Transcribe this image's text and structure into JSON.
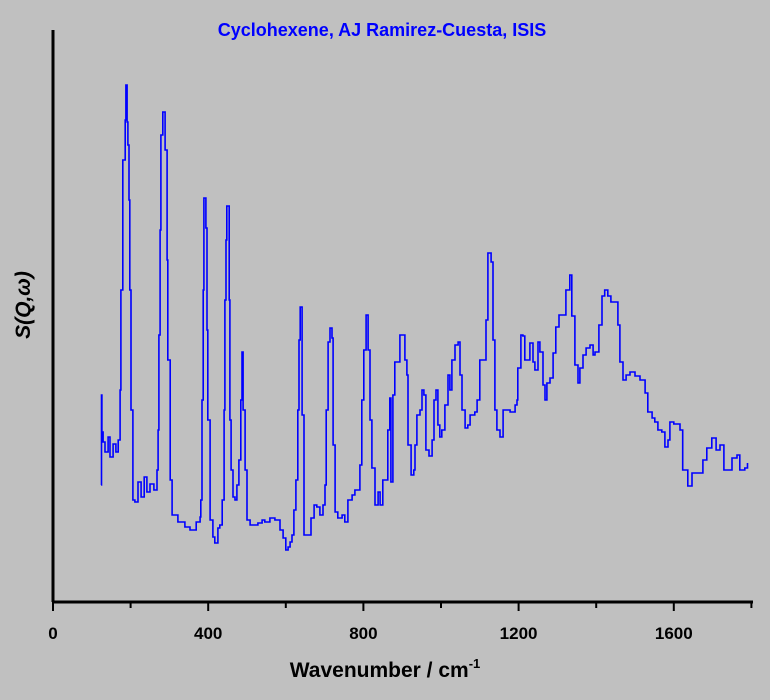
{
  "chart_data": {
    "type": "line",
    "title": "Cyclohexene, AJ Ramirez-Cuesta, ISIS",
    "xlabel": "Wavenumber / cm",
    "xlabel_superscript": "-1",
    "ylabel_prefix": "S(Q,",
    "ylabel_omega": "ω",
    "ylabel_suffix": ")",
    "xlim": [
      0,
      1800
    ],
    "ylim": [
      0,
      572
    ],
    "x_ticks": [
      0,
      400,
      800,
      1200,
      1600
    ],
    "x_tick_labels": [
      "0",
      "400",
      "800",
      "1200",
      "1600"
    ],
    "x_minor_ticks": [
      200,
      600,
      1000,
      1400,
      1800
    ],
    "y_ticks": [],
    "grid": false,
    "line_style": "step",
    "series": [
      {
        "name": "S(Q,ω)",
        "color": "#0000ff",
        "x": [
          124,
          125,
          126,
          129,
          134,
          142,
          147,
          155,
          162,
          168,
          173,
          175,
          180,
          186,
          188,
          191,
          193,
          196,
          198,
          201,
          206,
          211,
          219,
          227,
          235,
          242,
          250,
          260,
          268,
          271,
          273,
          276,
          278,
          283,
          289,
          294,
          296,
          302,
          307,
          322,
          340,
          353,
          369,
          379,
          381,
          384,
          387,
          389,
          394,
          397,
          399,
          405,
          412,
          417,
          425,
          430,
          436,
          441,
          443,
          446,
          448,
          454,
          456,
          459,
          464,
          469,
          474,
          479,
          484,
          487,
          490,
          495,
          500,
          508,
          521,
          528,
          539,
          546,
          559,
          572,
          585,
          593,
          600,
          606,
          611,
          616,
          621,
          626,
          631,
          634,
          637,
          642,
          647,
          657,
          665,
          673,
          680,
          688,
          696,
          701,
          704,
          709,
          714,
          719,
          722,
          727,
          734,
          745,
          752,
          760,
          771,
          778,
          791,
          796,
          801,
          807,
          812,
          817,
          822,
          830,
          838,
          843,
          850,
          858,
          863,
          868,
          871,
          876,
          881,
          889,
          894,
          907,
          912,
          915,
          923,
          930,
          933,
          938,
          946,
          951,
          956,
          961,
          969,
          977,
          982,
          987,
          992,
          997,
          1002,
          1010,
          1018,
          1023,
          1028,
          1036,
          1044,
          1049,
          1054,
          1062,
          1069,
          1075,
          1087,
          1093,
          1100,
          1116,
          1121,
          1129,
          1134,
          1139,
          1144,
          1152,
          1160,
          1170,
          1178,
          1183,
          1191,
          1196,
          1198,
          1206,
          1211,
          1216,
          1229,
          1237,
          1242,
          1250,
          1255,
          1263,
          1268,
          1273,
          1281,
          1289,
          1296,
          1304,
          1314,
          1322,
          1332,
          1337,
          1345,
          1353,
          1358,
          1366,
          1374,
          1384,
          1392,
          1397,
          1407,
          1415,
          1422,
          1430,
          1438,
          1448,
          1456,
          1461,
          1469,
          1477,
          1487,
          1500,
          1513,
          1526,
          1533,
          1544,
          1551,
          1559,
          1569,
          1577,
          1585,
          1590,
          1600,
          1616,
          1623,
          1636,
          1647,
          1662,
          1675,
          1685,
          1698,
          1709,
          1719,
          1729,
          1739,
          1750,
          1763,
          1770,
          1783,
          1790
        ],
        "y": [
          117,
          207,
          170,
          160,
          150,
          165,
          145,
          158,
          150,
          162,
          212,
          312,
          442,
          482,
          517,
          480,
          457,
          402,
          312,
          192,
          102,
          100,
          120,
          105,
          125,
          110,
          118,
          112,
          132,
          172,
          267,
          372,
          467,
          490,
          452,
          342,
          242,
          122,
          87,
          80,
          75,
          72,
          80,
          85,
          102,
          202,
          312,
          404,
          374,
          272,
          182,
          82,
          65,
          59,
          74,
          77,
          102,
          192,
          302,
          362,
          396,
          302,
          182,
          132,
          105,
          102,
          117,
          142,
          202,
          250,
          192,
          132,
          82,
          77,
          77,
          79,
          82,
          80,
          84,
          82,
          72,
          64,
          52,
          55,
          60,
          67,
          92,
          122,
          192,
          262,
          295,
          187,
          67,
          67,
          84,
          97,
          95,
          87,
          97,
          117,
          192,
          260,
          274,
          264,
          157,
          90,
          84,
          87,
          80,
          102,
          107,
          112,
          137,
          202,
          252,
          287,
          252,
          182,
          134,
          97,
          110,
          97,
          122,
          122,
          172,
          204,
          120,
          207,
          240,
          240,
          267,
          242,
          227,
          157,
          127,
          132,
          157,
          187,
          192,
          212,
          207,
          152,
          146,
          162,
          202,
          212,
          177,
          165,
          172,
          197,
          227,
          212,
          242,
          257,
          260,
          227,
          192,
          174,
          177,
          187,
          190,
          202,
          242,
          282,
          349,
          340,
          262,
          192,
          172,
          165,
          192,
          192,
          190,
          190,
          197,
          202,
          234,
          267,
          266,
          242,
          259,
          240,
          232,
          260,
          250,
          217,
          202,
          219,
          224,
          249,
          275,
          287,
          287,
          312,
          327,
          286,
          237,
          219,
          234,
          247,
          254,
          257,
          247,
          250,
          277,
          306,
          312,
          306,
          300,
          300,
          277,
          240,
          222,
          227,
          230,
          226,
          222,
          209,
          190,
          184,
          180,
          172,
          170,
          155,
          162,
          180,
          178,
          172,
          132,
          116,
          129,
          129,
          142,
          154,
          164,
          152,
          157,
          132,
          132,
          144,
          147,
          132,
          134,
          139
        ]
      }
    ]
  }
}
